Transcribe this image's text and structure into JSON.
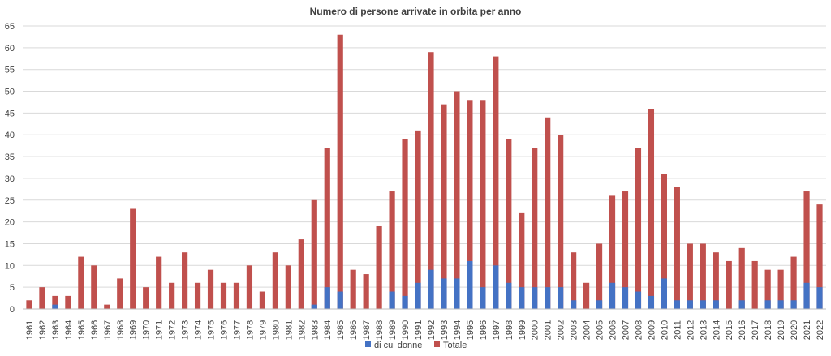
{
  "chart_data": {
    "type": "bar",
    "title": "Numero di persone arrivate in orbita per anno",
    "xlabel": "",
    "ylabel": "",
    "ylim": [
      0,
      65
    ],
    "yticks": [
      0,
      5,
      10,
      15,
      20,
      25,
      30,
      35,
      40,
      45,
      50,
      55,
      60,
      65
    ],
    "grid": true,
    "legend_position": "bottom",
    "categories": [
      "1961",
      "1962",
      "1963",
      "1964",
      "1965",
      "1966",
      "1967",
      "1968",
      "1969",
      "1970",
      "1971",
      "1972",
      "1973",
      "1974",
      "1975",
      "1976",
      "1977",
      "1978",
      "1979",
      "1980",
      "1981",
      "1982",
      "1983",
      "1984",
      "1985",
      "1986",
      "1987",
      "1988",
      "1989",
      "1990",
      "1991",
      "1992",
      "1993",
      "1994",
      "1995",
      "1996",
      "1997",
      "1998",
      "1999",
      "2000",
      "2001",
      "2002",
      "2003",
      "2004",
      "2005",
      "2006",
      "2007",
      "2008",
      "2009",
      "2010",
      "2011",
      "2012",
      "2013",
      "2014",
      "2015",
      "2016",
      "2017",
      "2018",
      "2019",
      "2020",
      "2021",
      "2022"
    ],
    "series": [
      {
        "name": "di cui donne",
        "color": "#4472c4",
        "values": [
          0,
          0,
          1,
          0,
          0,
          0,
          0,
          0,
          0,
          0,
          0,
          0,
          0,
          0,
          0,
          0,
          0,
          0,
          0,
          0,
          0,
          0,
          1,
          5,
          4,
          0,
          0,
          0,
          4,
          3,
          6,
          9,
          7,
          7,
          11,
          5,
          10,
          6,
          5,
          5,
          5,
          5,
          2,
          0,
          2,
          6,
          5,
          4,
          3,
          7,
          2,
          2,
          2,
          2,
          0,
          2,
          0,
          2,
          2,
          2,
          6,
          5
        ]
      },
      {
        "name": "Totale",
        "color": "#c0504d",
        "values": [
          2,
          5,
          3,
          3,
          12,
          10,
          1,
          7,
          23,
          5,
          12,
          6,
          13,
          6,
          9,
          6,
          6,
          10,
          4,
          13,
          10,
          16,
          25,
          37,
          63,
          9,
          8,
          19,
          27,
          39,
          41,
          59,
          47,
          50,
          48,
          48,
          58,
          39,
          22,
          37,
          44,
          40,
          13,
          6,
          15,
          26,
          27,
          37,
          46,
          31,
          28,
          15,
          15,
          13,
          11,
          14,
          11,
          9,
          9,
          12,
          27,
          24
        ]
      }
    ]
  }
}
